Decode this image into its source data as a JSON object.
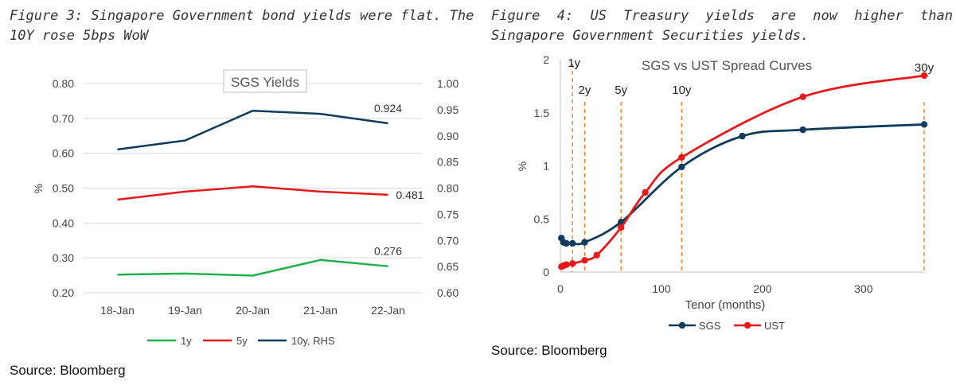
{
  "left_caption": "Figure 3: Singapore Government bond yields were flat. The 10Y rose 5bps WoW",
  "right_caption": "Figure 4: US Treasury yields are now higher than Singapore Government Securities yields.",
  "left_source": "Source: Bloomberg",
  "right_source": "Source: Bloomberg",
  "chart_data": [
    {
      "type": "line",
      "title": "SGS Yields",
      "xlabel": "",
      "ylabel": "%",
      "categories": [
        "18-Jan",
        "19-Jan",
        "20-Jan",
        "21-Jan",
        "22-Jan"
      ],
      "ylim": [
        0.2,
        0.8
      ],
      "yticks": [
        "0.20",
        "0.30",
        "0.40",
        "0.50",
        "0.60",
        "0.70",
        "0.80"
      ],
      "y2lim": [
        0.6,
        1.0
      ],
      "y2ticks": [
        "0.60",
        "0.65",
        "0.70",
        "0.75",
        "0.80",
        "0.85",
        "0.90",
        "0.95",
        "1.00"
      ],
      "grid": true,
      "legend_position": "bottom",
      "series": [
        {
          "name": "1y",
          "axis": "left",
          "color": "#21b04b",
          "values": [
            0.252,
            0.255,
            0.249,
            0.294,
            0.276
          ],
          "end_label": "0.276"
        },
        {
          "name": "5y",
          "axis": "left",
          "color": "#e8191a",
          "values": [
            0.467,
            0.49,
            0.505,
            0.49,
            0.481
          ],
          "end_label": "0.481"
        },
        {
          "name": "10y, RHS",
          "axis": "right",
          "color": "#0f3c5c",
          "values": [
            0.874,
            0.891,
            0.948,
            0.942,
            0.924
          ],
          "end_label": "0.924"
        }
      ]
    },
    {
      "type": "line",
      "title": "SGS vs UST Spread Curves",
      "xlabel": "Tenor (months)",
      "ylabel": "%",
      "xlim": [
        0,
        360
      ],
      "xticks": [
        "0",
        "100",
        "200",
        "300"
      ],
      "ylim": [
        0,
        2
      ],
      "yticks": [
        "0",
        "0.5",
        "1",
        "1.5",
        "2"
      ],
      "grid": false,
      "legend_position": "bottom",
      "tenor_markers": [
        {
          "label": "1y",
          "x": 12
        },
        {
          "label": "2y",
          "x": 24
        },
        {
          "label": "5y",
          "x": 60
        },
        {
          "label": "10y",
          "x": 120
        },
        {
          "label": "30y",
          "x": 360
        }
      ],
      "series": [
        {
          "name": "SGS",
          "color": "#0f3c5c",
          "x": [
            1,
            3,
            6,
            12,
            24,
            60,
            120,
            180,
            240,
            360
          ],
          "y": [
            0.32,
            0.28,
            0.27,
            0.27,
            0.28,
            0.47,
            0.99,
            1.28,
            1.34,
            1.39
          ]
        },
        {
          "name": "UST",
          "color": "#e8191a",
          "x": [
            1,
            3,
            6,
            12,
            24,
            36,
            60,
            84,
            120,
            240,
            360
          ],
          "y": [
            0.05,
            0.06,
            0.07,
            0.08,
            0.11,
            0.16,
            0.42,
            0.75,
            1.08,
            1.65,
            1.85
          ]
        }
      ]
    }
  ]
}
